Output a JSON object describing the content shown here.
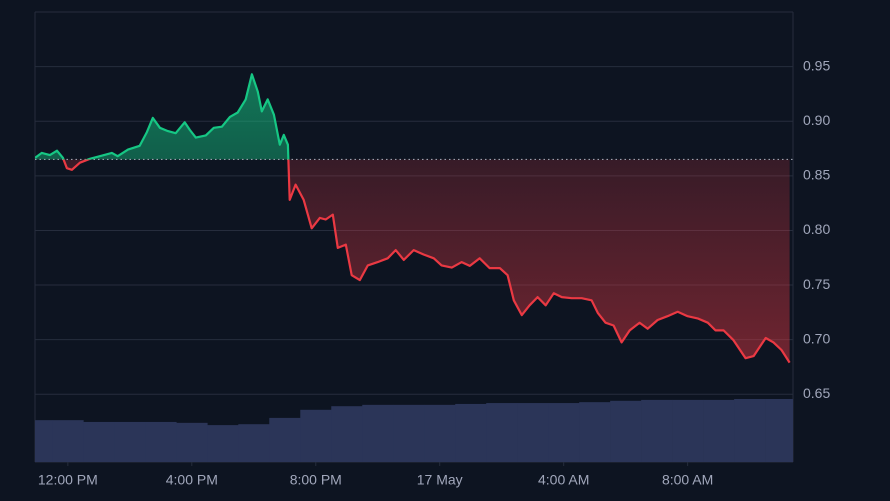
{
  "chart_data": {
    "type": "line",
    "x": [
      -1.06,
      -0.84,
      -0.58,
      -0.35,
      -0.16,
      -0.03,
      0.13,
      0.39,
      0.71,
      1.03,
      1.42,
      1.61,
      1.94,
      2.32,
      2.55,
      2.74,
      2.97,
      3.23,
      3.48,
      3.77,
      3.94,
      4.13,
      4.45,
      4.71,
      4.97,
      5.23,
      5.48,
      5.74,
      5.94,
      6.13,
      6.26,
      6.45,
      6.65,
      6.84,
      6.97,
      7.1,
      7.16,
      7.35,
      7.61,
      7.87,
      8.13,
      8.32,
      8.55,
      8.71,
      8.97,
      9.16,
      9.42,
      9.68,
      10.0,
      10.32,
      10.58,
      10.84,
      11.16,
      11.48,
      11.81,
      12.06,
      12.39,
      12.71,
      12.97,
      13.29,
      13.61,
      13.94,
      14.19,
      14.39,
      14.65,
      14.9,
      15.16,
      15.42,
      15.68,
      15.94,
      16.26,
      16.58,
      16.9,
      17.1,
      17.35,
      17.61,
      17.87,
      18.13,
      18.45,
      18.71,
      19.03,
      19.35,
      19.68,
      20.0,
      20.32,
      20.65,
      20.9,
      21.16,
      21.48,
      21.87,
      22.13,
      22.52,
      22.77,
      23.03,
      23.29
    ],
    "baseline": 0.865,
    "series": [
      {
        "color": "#16c784",
        "color_below": "#ea3943",
        "values": [
          0.8665,
          0.871,
          0.869,
          0.873,
          0.8665,
          0.857,
          0.8555,
          0.862,
          0.8656,
          0.868,
          0.871,
          0.868,
          0.874,
          0.8775,
          0.89,
          0.903,
          0.894,
          0.891,
          0.889,
          0.899,
          0.892,
          0.885,
          0.887,
          0.894,
          0.895,
          0.904,
          0.908,
          0.92,
          0.943,
          0.927,
          0.909,
          0.92,
          0.906,
          0.8785,
          0.8875,
          0.8785,
          0.828,
          0.842,
          0.828,
          0.802,
          0.8115,
          0.81,
          0.8145,
          0.784,
          0.787,
          0.759,
          0.7545,
          0.768,
          0.771,
          0.7745,
          0.782,
          0.773,
          0.782,
          0.778,
          0.7745,
          0.768,
          0.766,
          0.771,
          0.7675,
          0.7745,
          0.7655,
          0.7655,
          0.759,
          0.736,
          0.7225,
          0.7315,
          0.739,
          0.7315,
          0.7425,
          0.739,
          0.738,
          0.738,
          0.736,
          0.7245,
          0.7155,
          0.713,
          0.6975,
          0.7085,
          0.7155,
          0.71,
          0.718,
          0.7215,
          0.7255,
          0.7215,
          0.7195,
          0.7155,
          0.7085,
          0.7085,
          0.6995,
          0.683,
          0.685,
          0.7015,
          0.6975,
          0.6905,
          0.679
        ]
      },
      {
        "type": "bar",
        "axis": "y2",
        "color": "#2b3558",
        "x": [
          -1,
          0,
          1,
          2,
          3,
          4,
          5,
          6,
          7,
          8,
          9,
          10,
          11,
          12,
          13,
          14,
          15,
          16,
          17,
          18,
          19,
          20,
          21,
          22,
          23
        ],
        "values": [
          9.3,
          9.3,
          8.9,
          8.9,
          8.9,
          8.7,
          8.2,
          8.4,
          9.8,
          11.6,
          12.4,
          12.7,
          12.7,
          12.7,
          12.9,
          13.1,
          13.1,
          13.1,
          13.3,
          13.6,
          13.8,
          13.8,
          13.8,
          14.0,
          14.0
        ]
      }
    ],
    "xlim": [
      -1.06,
      23.4
    ],
    "xticks": [
      {
        "value": 0,
        "label": "12:00 PM"
      },
      {
        "value": 4,
        "label": "4:00 PM"
      },
      {
        "value": 8,
        "label": "8:00 PM"
      },
      {
        "value": 12,
        "label": "17 May"
      },
      {
        "value": 16,
        "label": "4:00 AM"
      },
      {
        "value": 20,
        "label": "8:00 AM"
      }
    ],
    "ylim": [
      0.588,
      1.0
    ],
    "yticks": [
      0.65,
      {
        "value": 0.7,
        "label": "0.70"
      },
      0.75,
      {
        "value": 0.8,
        "label": "0.80"
      },
      0.85,
      {
        "value": 0.9,
        "label": "0.90"
      },
      0.95
    ],
    "y2lim": [
      0,
      100
    ],
    "grid": true
  }
}
